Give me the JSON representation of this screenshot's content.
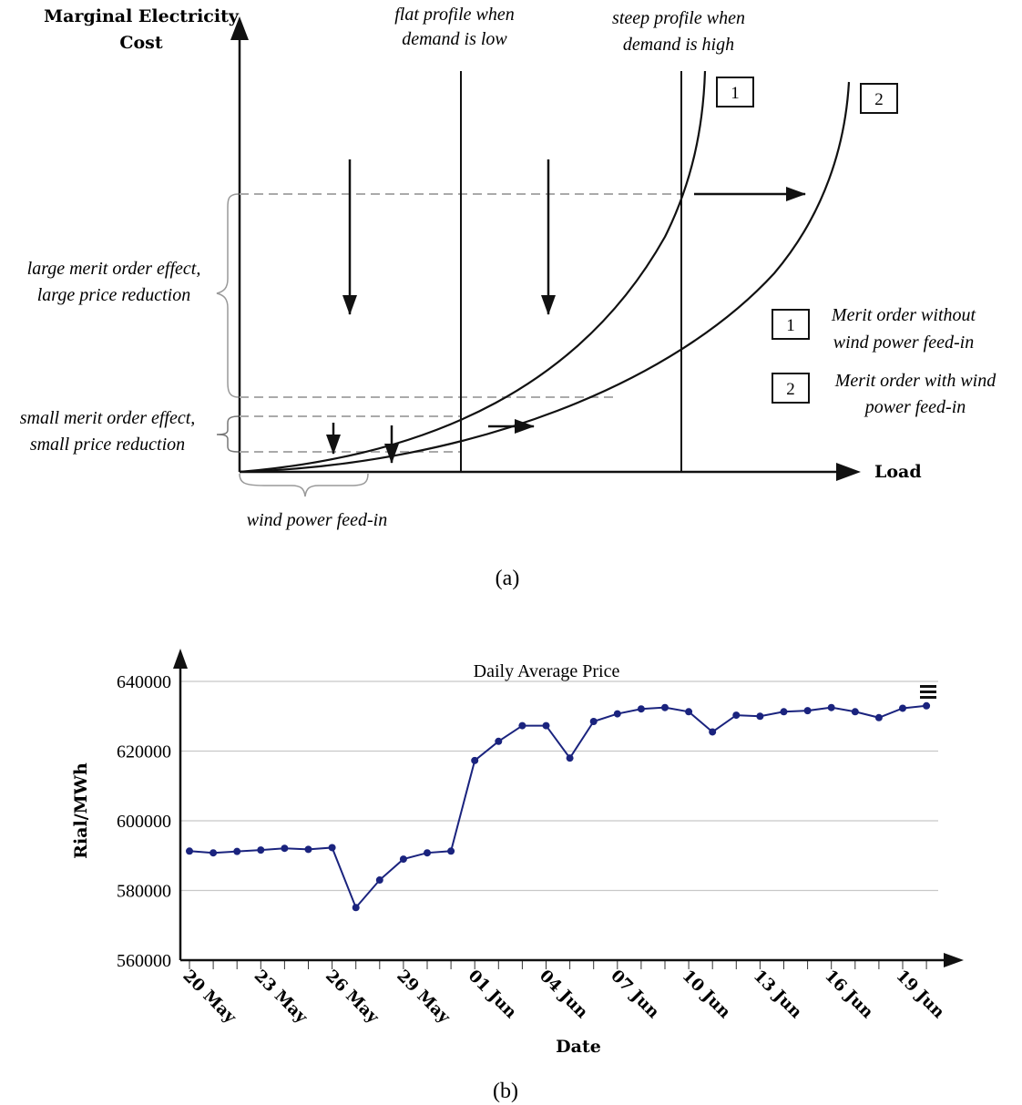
{
  "panel_a": {
    "y_axis_label": [
      "Marginal Electricity",
      "Cost"
    ],
    "x_axis_label": "Load",
    "top_labels": {
      "flat": [
        "flat profile when",
        "demand is low"
      ],
      "steep": [
        "steep profile when",
        "demand is high"
      ]
    },
    "curve_tags": [
      "1",
      "2"
    ],
    "left_labels": {
      "large": [
        "large merit order effect,",
        "large price reduction"
      ],
      "small": [
        "small merit order effect,",
        "small price reduction"
      ]
    },
    "bottom_label": "wind power feed-in",
    "legend": [
      {
        "tag": "1",
        "lines": [
          "Merit order without",
          "wind power feed-in"
        ]
      },
      {
        "tag": "2",
        "lines": [
          "Merit order with wind",
          "power feed-in"
        ]
      }
    ],
    "caption": "(a)"
  },
  "panel_b": {
    "caption": "(b)",
    "menu_icon": "hamburger-menu-icon",
    "chart_data": {
      "type": "line",
      "title": "Daily Average Price",
      "xlabel": "Date",
      "ylabel": "Rial/MWh",
      "ylim": [
        560000,
        640000
      ],
      "yticks": [
        560000,
        580000,
        600000,
        620000,
        640000
      ],
      "ytick_labels": [
        "560000",
        "580000",
        "600000",
        "620000",
        "640000"
      ],
      "xtick_labels": [
        "20 May",
        "23 May",
        "26 May",
        "29 May",
        "01 Jun",
        "04 Jun",
        "07 Jun",
        "10 Jun",
        "13 Jun",
        "16 Jun",
        "19 Jun"
      ],
      "xtick_day_index": [
        0,
        3,
        6,
        9,
        12,
        15,
        18,
        21,
        24,
        27,
        30
      ],
      "num_days": 32,
      "grid": true,
      "line_color": "#1a237e",
      "series": [
        {
          "name": "Daily Average Price",
          "x": [
            0,
            1,
            2,
            3,
            4,
            5,
            6,
            7,
            8,
            9,
            10,
            11,
            12,
            13,
            14,
            15,
            16,
            17,
            18,
            19,
            20,
            21,
            22,
            23,
            24,
            25,
            26,
            27,
            28,
            29,
            30,
            31
          ],
          "values": [
            591300,
            590800,
            591200,
            591600,
            592100,
            591800,
            592300,
            575100,
            583000,
            589000,
            590800,
            591300,
            617300,
            622800,
            627300,
            627300,
            618000,
            628500,
            630700,
            632100,
            632500,
            631300,
            625500,
            630300,
            630000,
            631300,
            631600,
            632500,
            631300,
            629600,
            632300,
            633000
          ]
        }
      ]
    }
  }
}
